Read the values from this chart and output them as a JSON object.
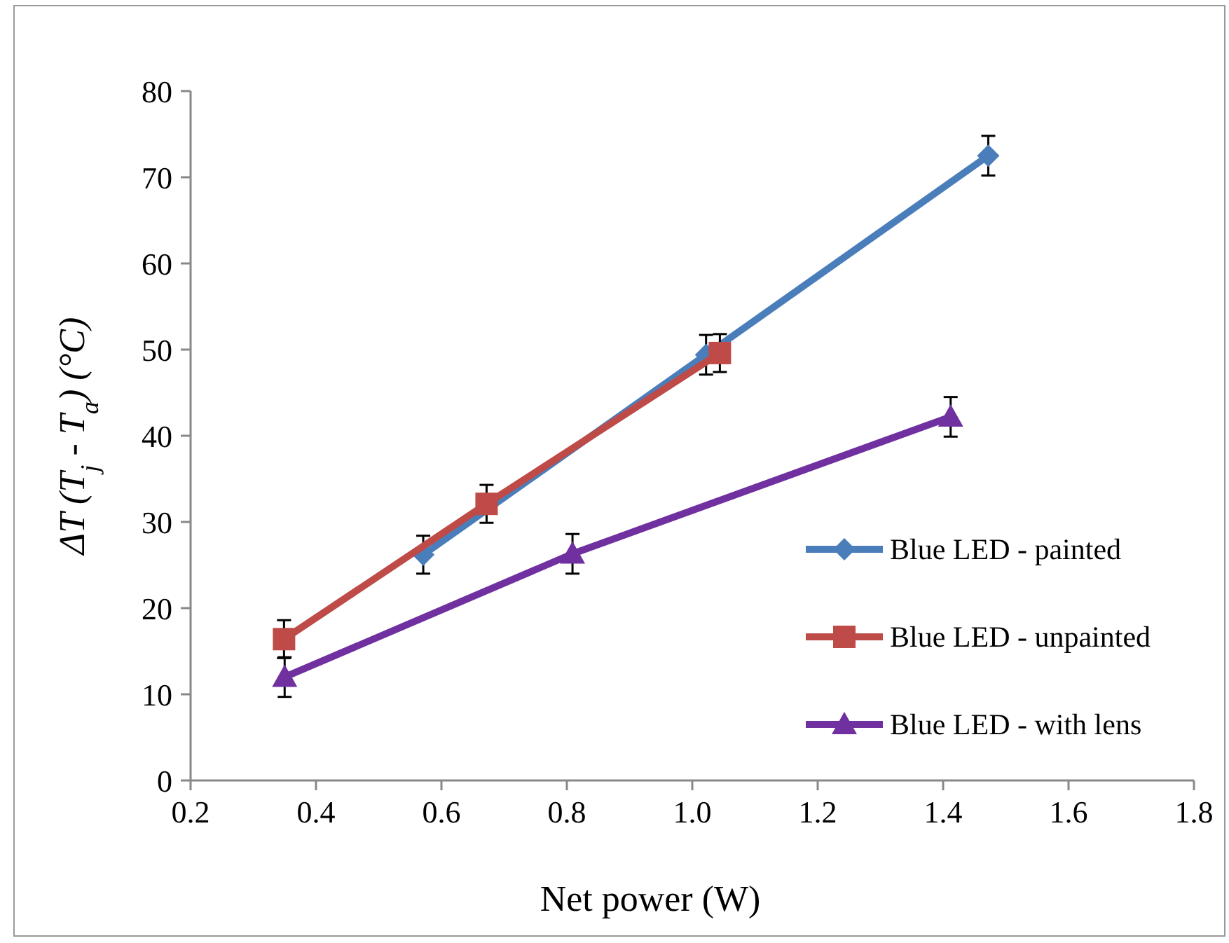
{
  "chart_data": {
    "type": "line",
    "xlabel": "Net power (W)",
    "ylabel": "ΔT (T$_{j}$ - T$_{a}$) (°C)",
    "xlim": [
      0.2,
      1.8
    ],
    "xticks": [
      0.2,
      0.4,
      0.6,
      0.8,
      {
        "value": 1.0,
        "label": "1.0"
      },
      1.2,
      1.4,
      1.6,
      1.8
    ],
    "ylim": [
      0,
      80
    ],
    "yticks": [
      0,
      10,
      20,
      30,
      40,
      50,
      60,
      70,
      80
    ],
    "grid": false,
    "legend": "right",
    "line_style": "solid",
    "series": [
      {
        "name": "Blue LED - painted",
        "color": "#4a7ebb",
        "marker": "diamond",
        "x": [
          0.571,
          1.022,
          1.472
        ],
        "values": [
          26.2,
          49.4,
          72.5
        ],
        "errors": [
          2.2,
          2.3,
          2.3
        ]
      },
      {
        "name": "Blue LED - unpainted",
        "color": "#be4b48",
        "marker": "square",
        "x": [
          0.349,
          0.672,
          1.044
        ],
        "values": [
          16.4,
          32.1,
          49.6
        ],
        "errors": [
          2.2,
          2.2,
          2.2
        ]
      },
      {
        "name": "Blue LED - with lens",
        "color": "#7030a0",
        "marker": "triangle",
        "x": [
          0.35,
          0.809,
          1.412
        ],
        "values": [
          12.0,
          26.3,
          42.2
        ],
        "errors": [
          2.3,
          2.3,
          2.3
        ]
      }
    ]
  }
}
